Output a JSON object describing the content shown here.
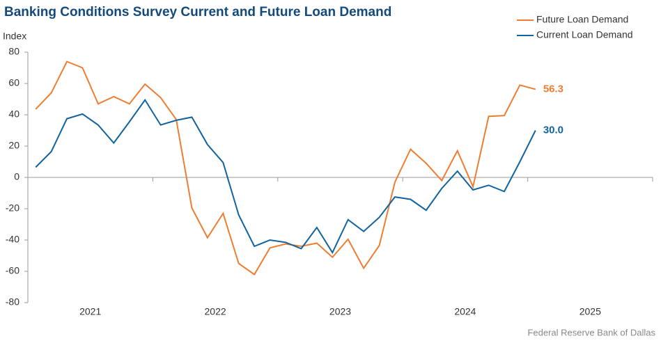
{
  "chart_data": {
    "type": "line",
    "title": "Banking Conditions Survey Current and Future Loan Demand",
    "y_label": "Index",
    "source": "Federal Reserve Bank of Dallas",
    "x": [
      2021.0625,
      2021.1875,
      2021.3125,
      2021.4375,
      2021.5625,
      2021.6875,
      2021.8125,
      2021.9375,
      2022.0625,
      2022.1875,
      2022.3125,
      2022.4375,
      2022.5625,
      2022.6875,
      2022.8125,
      2022.9375,
      2023.0625,
      2023.1875,
      2023.3125,
      2023.4375,
      2023.5625,
      2023.6875,
      2023.8125,
      2023.9375,
      2024.0625,
      2024.1875,
      2024.3125,
      2024.4375,
      2024.5625,
      2024.6875,
      2024.8125,
      2024.9375,
      2025.0625
    ],
    "xlim": [
      2021,
      2026
    ],
    "xticks": [
      2021,
      2022,
      2023,
      2024,
      2025,
      2026
    ],
    "xlabels": [
      "2021",
      "2022",
      "2023",
      "2024",
      "2025"
    ],
    "ylim": [
      -80,
      80
    ],
    "yticks": [
      -80,
      -60,
      -40,
      -20,
      0,
      20,
      40,
      60,
      80
    ],
    "legend": "top-right",
    "series": [
      {
        "name": "Future Loan Demand",
        "color": "#ee7d31",
        "values": [
          43.6,
          54,
          74,
          70,
          47,
          51.6,
          47,
          59.6,
          51,
          37,
          -19.5,
          -38.5,
          -23,
          -55,
          -62,
          -45,
          -42.5,
          -44,
          -42,
          -51,
          -39.5,
          -58,
          -43.5,
          -3,
          18,
          9,
          -2,
          17,
          -6,
          39,
          39.5,
          59,
          56.3
        ],
        "value_labels": [
          null,
          null,
          null,
          null,
          null,
          null,
          null,
          null,
          null,
          null,
          null,
          null,
          null,
          null,
          null,
          null,
          null,
          null,
          null,
          null,
          null,
          null,
          null,
          null,
          null,
          null,
          null,
          null,
          null,
          null,
          null,
          null,
          "56.3"
        ]
      },
      {
        "name": "Current Loan Demand",
        "color": "#10639e",
        "values": [
          6.5,
          16.5,
          37.5,
          40.5,
          33.5,
          22,
          35.5,
          49.5,
          33.5,
          36.5,
          38.5,
          21,
          9.5,
          -24,
          -44,
          -40,
          -41.5,
          -45.5,
          -32,
          -48,
          -27,
          -34.5,
          -25.5,
          -12.5,
          -14,
          -21,
          -7,
          4,
          -8,
          -5,
          -9,
          10,
          30
        ],
        "value_labels": [
          null,
          null,
          null,
          null,
          null,
          null,
          null,
          null,
          null,
          null,
          null,
          null,
          null,
          null,
          null,
          null,
          null,
          null,
          null,
          null,
          null,
          null,
          null,
          null,
          null,
          null,
          null,
          null,
          null,
          null,
          null,
          null,
          "30.0"
        ]
      }
    ]
  }
}
